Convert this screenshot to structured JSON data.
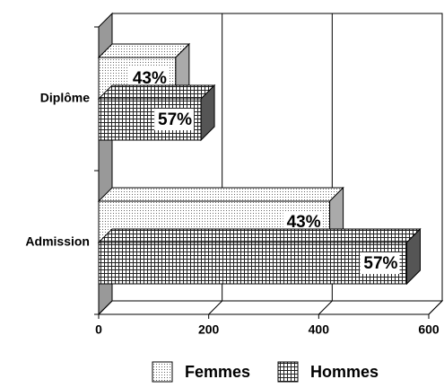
{
  "chart_data": {
    "type": "bar3d",
    "orientation": "horizontal",
    "categories": [
      "Diplôme",
      "Admission"
    ],
    "series": [
      {
        "name": "Femmes",
        "color": "#666666",
        "values": [
          140,
          420
        ],
        "data_labels": [
          "43%",
          "43%"
        ]
      },
      {
        "name": "Hommes",
        "color": "#222222",
        "values": [
          186,
          560
        ],
        "data_labels": [
          "57%",
          "57%"
        ]
      }
    ],
    "xlim": [
      0,
      600
    ],
    "xticks": [
      0,
      200,
      400,
      600
    ],
    "grid": true,
    "legend": "bottom"
  }
}
